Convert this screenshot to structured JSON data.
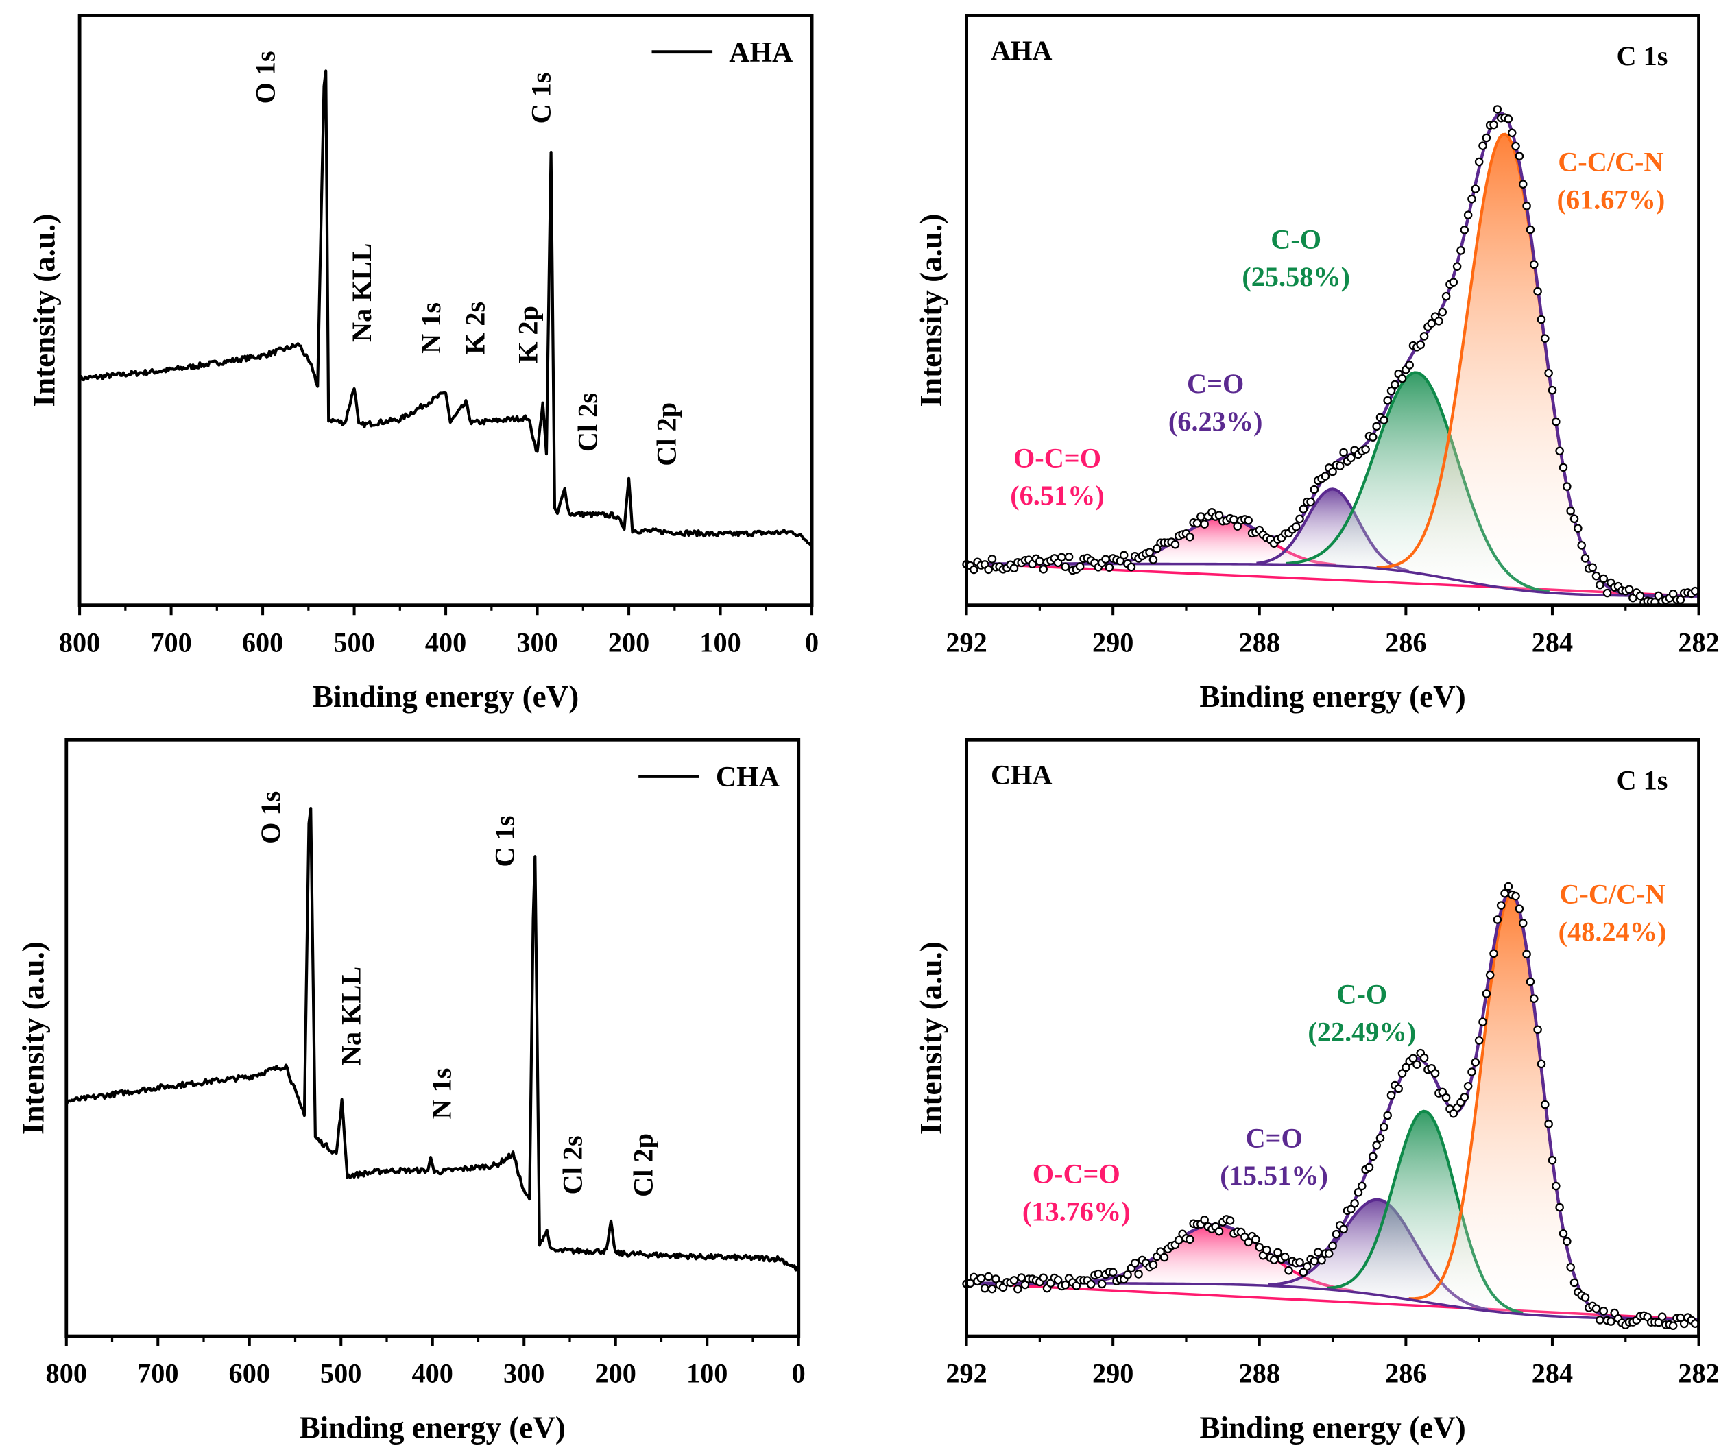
{
  "chart_data": [
    {
      "type": "line",
      "id": "survey-aha",
      "title": "",
      "xlabel": "Binding energy (eV)",
      "ylabel": "Intensity (a.u.)",
      "xlim": [
        800,
        0
      ],
      "ylim": [
        0,
        100
      ],
      "xticks": [
        "800",
        "700",
        "600",
        "500",
        "400",
        "300",
        "200",
        "100",
        "0"
      ],
      "legend": {
        "label": "AHA",
        "position": "top-right"
      },
      "series": [
        {
          "name": "AHA",
          "color": "#000000",
          "x": [
            800,
            700,
            600,
            560,
            545,
            540,
            533,
            531,
            528,
            510,
            500,
            495,
            450,
            400,
            395,
            378,
            372,
            310,
            300,
            294,
            290,
            285,
            281,
            278,
            270,
            265,
            215,
            205,
            200,
            196,
            100,
            20,
            0
          ],
          "y": [
            38.4,
            39.9,
            42.3,
            44.2,
            39.9,
            37.1,
            88,
            90.6,
            31.5,
            30.9,
            37.1,
            30.5,
            31.5,
            36.1,
            31,
            34.3,
            30.9,
            31.8,
            25.8,
            34.3,
            25.8,
            76.8,
            16.5,
            15.5,
            19.7,
            15.5,
            15.2,
            13.3,
            21.5,
            12.7,
            12,
            12.4,
            10.5
          ]
        }
      ],
      "annotations": [
        {
          "text": "O 1s",
          "x": 597,
          "y": 89.5
        },
        {
          "text": "Na KLL",
          "x": 492,
          "y": 53
        },
        {
          "text": "N 1s",
          "x": 416,
          "y": 47
        },
        {
          "text": "K 2s",
          "x": 368,
          "y": 47
        },
        {
          "text": "K 2p",
          "x": 310,
          "y": 45.9
        },
        {
          "text": "C 1s",
          "x": 296,
          "y": 86
        },
        {
          "text": "Cl 2s",
          "x": 245,
          "y": 31
        },
        {
          "text": "Cl 2p",
          "x": 159,
          "y": 29
        }
      ]
    },
    {
      "type": "line",
      "id": "c1s-aha",
      "title": "C 1s",
      "sample": "AHA",
      "xlabel": "Binding energy (eV)",
      "ylabel": "Intensity (a.u.)",
      "xlim": [
        292,
        282
      ],
      "ylim": [
        0,
        100
      ],
      "xticks": [
        "292",
        "290",
        "288",
        "286",
        "284",
        "282"
      ],
      "background": {
        "low": 1.5,
        "step": 5.5,
        "center": 285.3,
        "width": 0.6,
        "linear": [
          7.1,
          1.5
        ]
      },
      "envelope_color": "#5b2a90",
      "components": [
        {
          "name": "C-C/C-N",
          "percent": "(61.67%)",
          "center": 284.65,
          "height": 77,
          "sigma": 0.5,
          "color": "#ff6a13",
          "label_x": 283.2,
          "label_y": 73.6
        },
        {
          "name": "C-O",
          "percent": "(25.58%)",
          "center": 285.85,
          "height": 34,
          "sigma": 0.55,
          "color": "#0f8a4a",
          "label_x": 287.5,
          "label_y": 60.5
        },
        {
          "name": "C=O",
          "percent": "(6.23%)",
          "center": 287.0,
          "height": 13,
          "sigma": 0.35,
          "color": "#5b2a90",
          "label_x": 288.6,
          "label_y": 36
        },
        {
          "name": "O-C=O",
          "percent": "(6.51%)",
          "center": 288.5,
          "height": 8,
          "sigma": 0.55,
          "color": "#ff1a6e",
          "label_x": 290.76,
          "label_y": 23.4
        }
      ]
    },
    {
      "type": "line",
      "id": "survey-cha",
      "title": "",
      "xlabel": "Binding energy (eV)",
      "ylabel": "Intensity (a.u.)",
      "xlim": [
        800,
        0
      ],
      "ylim": [
        0,
        100
      ],
      "xticks": [
        "800",
        "700",
        "600",
        "500",
        "400",
        "300",
        "200",
        "100",
        "0"
      ],
      "legend": {
        "label": "CHA",
        "position": "top-right"
      },
      "series": [
        {
          "name": "CHA",
          "color": "#000000",
          "x": [
            800,
            700,
            600,
            560,
            545,
            540,
            535,
            533,
            528,
            505,
            499,
            493,
            450,
            405,
            402,
            398,
            330,
            312,
            300,
            294,
            290,
            288,
            283,
            275,
            270,
            210,
            205,
            200,
            100,
            20,
            0
          ],
          "y": [
            39.4,
            41.7,
            43.5,
            45.4,
            38.9,
            37.4,
            86,
            88.5,
            33.3,
            30.6,
            39.4,
            26.9,
            27.8,
            27.8,
            30,
            27.5,
            28.7,
            30.6,
            24.1,
            23,
            70,
            80.6,
            15.7,
            17.6,
            14.3,
            14.3,
            18.9,
            13.9,
            13.3,
            13,
            11.1
          ]
        }
      ],
      "annotations": [
        {
          "text": "O 1s",
          "x": 577,
          "y": 87
        },
        {
          "text": "Na KLL",
          "x": 489,
          "y": 53.7
        },
        {
          "text": "N 1s",
          "x": 390,
          "y": 40.7
        },
        {
          "text": "C 1s",
          "x": 321,
          "y": 83
        },
        {
          "text": "Cl 2s",
          "x": 247,
          "y": 28.7
        },
        {
          "text": "Cl 2p",
          "x": 170,
          "y": 28.7
        }
      ]
    },
    {
      "type": "line",
      "id": "c1s-cha",
      "title": "C 1s",
      "sample": "CHA",
      "xlabel": "Binding energy (eV)",
      "ylabel": "Intensity (a.u.)",
      "xlim": [
        292,
        282
      ],
      "ylim": [
        0,
        100
      ],
      "xticks": [
        "292",
        "290",
        "288",
        "286",
        "284",
        "282"
      ],
      "background": {
        "low": 2.8,
        "step": 6.1,
        "center": 285.8,
        "width": 0.8,
        "linear": [
          8.9,
          2.8
        ]
      },
      "envelope_color": "#5b2a90",
      "components": [
        {
          "name": "C-C/C-N",
          "percent": "(48.24%)",
          "center": 284.56,
          "height": 70,
          "sigma": 0.4,
          "color": "#ff6a13",
          "label_x": 283.18,
          "label_y": 72.6
        },
        {
          "name": "C-O",
          "percent": "(22.49%)",
          "center": 285.74,
          "height": 32,
          "sigma": 0.42,
          "color": "#0f8a4a",
          "label_x": 286.6,
          "label_y": 55.8
        },
        {
          "name": "C=O",
          "percent": "(15.51%)",
          "center": 286.37,
          "height": 16,
          "sigma": 0.5,
          "color": "#5b2a90",
          "label_x": 287.8,
          "label_y": 31.7
        },
        {
          "name": "O-C=O",
          "percent": "(13.76%)",
          "center": 288.6,
          "height": 10,
          "sigma": 0.65,
          "color": "#ff1a6e",
          "label_x": 290.5,
          "label_y": 25.7
        }
      ]
    }
  ]
}
